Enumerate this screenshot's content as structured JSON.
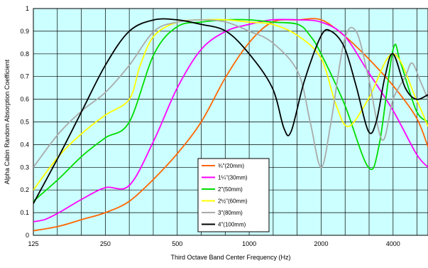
{
  "chart_data": {
    "type": "line",
    "xlabel": "Third Octave Band Center Frequency (Hz)",
    "ylabel": "Alpha Cabin Random Absorption Coefficient",
    "x_scale": "log",
    "xlim": [
      125,
      5600
    ],
    "ylim": [
      0,
      1
    ],
    "x_ticks": [
      125,
      250,
      500,
      1000,
      2000,
      4000
    ],
    "x_tick_labels": [
      "125",
      "250",
      "500",
      "1000",
      "2000",
      "4000"
    ],
    "y_ticks": [
      0,
      0.1,
      0.2,
      0.3,
      0.4,
      0.5,
      0.6,
      0.7,
      0.8,
      0.9,
      1
    ],
    "y_tick_labels": [
      "0",
      "0.1",
      "0.2",
      "0.3",
      "0.4",
      "0.5",
      "0.6",
      "0.7",
      "0.8",
      "0.9",
      "1"
    ],
    "grid": true,
    "background_color": "#ccffff",
    "legend_position": "bottom-center",
    "series": [
      {
        "name": "¾\"(20mm)",
        "color": "#ff6600",
        "points": [
          [
            125,
            0.02
          ],
          [
            160,
            0.04
          ],
          [
            200,
            0.07
          ],
          [
            250,
            0.1
          ],
          [
            315,
            0.15
          ],
          [
            400,
            0.25
          ],
          [
            500,
            0.36
          ],
          [
            630,
            0.5
          ],
          [
            800,
            0.7
          ],
          [
            1000,
            0.85
          ],
          [
            1250,
            0.94
          ],
          [
            1600,
            0.95
          ],
          [
            2000,
            0.95
          ],
          [
            2500,
            0.88
          ],
          [
            3150,
            0.78
          ],
          [
            4000,
            0.66
          ],
          [
            5000,
            0.52
          ],
          [
            5600,
            0.39
          ]
        ]
      },
      {
        "name": "1¼\"(30mm)",
        "color": "#ff00ff",
        "points": [
          [
            125,
            0.06
          ],
          [
            140,
            0.07
          ],
          [
            160,
            0.1
          ],
          [
            200,
            0.16
          ],
          [
            250,
            0.21
          ],
          [
            315,
            0.22
          ],
          [
            400,
            0.42
          ],
          [
            500,
            0.65
          ],
          [
            630,
            0.82
          ],
          [
            800,
            0.9
          ],
          [
            1000,
            0.93
          ],
          [
            1250,
            0.95
          ],
          [
            1600,
            0.95
          ],
          [
            2000,
            0.94
          ],
          [
            2500,
            0.88
          ],
          [
            3150,
            0.72
          ],
          [
            4000,
            0.55
          ],
          [
            5000,
            0.36
          ],
          [
            5600,
            0.3
          ]
        ]
      },
      {
        "name": "2\"(50mm)",
        "color": "#00dd00",
        "points": [
          [
            125,
            0.15
          ],
          [
            160,
            0.25
          ],
          [
            200,
            0.35
          ],
          [
            250,
            0.43
          ],
          [
            315,
            0.5
          ],
          [
            400,
            0.8
          ],
          [
            500,
            0.92
          ],
          [
            630,
            0.94
          ],
          [
            800,
            0.95
          ],
          [
            1000,
            0.95
          ],
          [
            1250,
            0.94
          ],
          [
            1600,
            0.93
          ],
          [
            1800,
            0.88
          ],
          [
            2000,
            0.8
          ],
          [
            2500,
            0.58
          ],
          [
            3150,
            0.3
          ],
          [
            3500,
            0.4
          ],
          [
            4000,
            0.82
          ],
          [
            4300,
            0.76
          ],
          [
            5000,
            0.55
          ],
          [
            5600,
            0.5
          ]
        ]
      },
      {
        "name": "2½\"(60mm)",
        "color": "#ffff00",
        "points": [
          [
            125,
            0.2
          ],
          [
            160,
            0.35
          ],
          [
            200,
            0.45
          ],
          [
            250,
            0.53
          ],
          [
            315,
            0.6
          ],
          [
            350,
            0.75
          ],
          [
            400,
            0.88
          ],
          [
            500,
            0.94
          ],
          [
            630,
            0.95
          ],
          [
            800,
            0.95
          ],
          [
            1000,
            0.94
          ],
          [
            1250,
            0.93
          ],
          [
            1600,
            0.88
          ],
          [
            2000,
            0.78
          ],
          [
            2300,
            0.58
          ],
          [
            2600,
            0.48
          ],
          [
            3150,
            0.6
          ],
          [
            4000,
            0.8
          ],
          [
            5000,
            0.6
          ],
          [
            5600,
            0.48
          ]
        ]
      },
      {
        "name": "3\"(80mm)",
        "color": "#aaaaaa",
        "points": [
          [
            125,
            0.3
          ],
          [
            160,
            0.45
          ],
          [
            200,
            0.55
          ],
          [
            250,
            0.63
          ],
          [
            315,
            0.75
          ],
          [
            400,
            0.9
          ],
          [
            500,
            0.94
          ],
          [
            630,
            0.95
          ],
          [
            800,
            0.94
          ],
          [
            1000,
            0.9
          ],
          [
            1250,
            0.85
          ],
          [
            1600,
            0.72
          ],
          [
            1800,
            0.5
          ],
          [
            2000,
            0.3
          ],
          [
            2200,
            0.5
          ],
          [
            2500,
            0.86
          ],
          [
            2800,
            0.9
          ],
          [
            3150,
            0.7
          ],
          [
            3600,
            0.42
          ],
          [
            4000,
            0.6
          ],
          [
            4500,
            0.7
          ],
          [
            4800,
            0.76
          ],
          [
            5200,
            0.68
          ],
          [
            5600,
            0.6
          ]
        ]
      },
      {
        "name": "4\"(100mm)",
        "color": "#000000",
        "points": [
          [
            125,
            0.14
          ],
          [
            160,
            0.35
          ],
          [
            200,
            0.55
          ],
          [
            250,
            0.75
          ],
          [
            315,
            0.9
          ],
          [
            400,
            0.95
          ],
          [
            500,
            0.95
          ],
          [
            630,
            0.93
          ],
          [
            800,
            0.9
          ],
          [
            1000,
            0.8
          ],
          [
            1250,
            0.65
          ],
          [
            1400,
            0.47
          ],
          [
            1500,
            0.46
          ],
          [
            1700,
            0.68
          ],
          [
            2000,
            0.88
          ],
          [
            2200,
            0.9
          ],
          [
            2500,
            0.83
          ],
          [
            2800,
            0.66
          ],
          [
            3150,
            0.46
          ],
          [
            3400,
            0.5
          ],
          [
            3700,
            0.7
          ],
          [
            4000,
            0.8
          ],
          [
            4500,
            0.65
          ],
          [
            5000,
            0.6
          ],
          [
            5600,
            0.62
          ]
        ]
      }
    ]
  }
}
